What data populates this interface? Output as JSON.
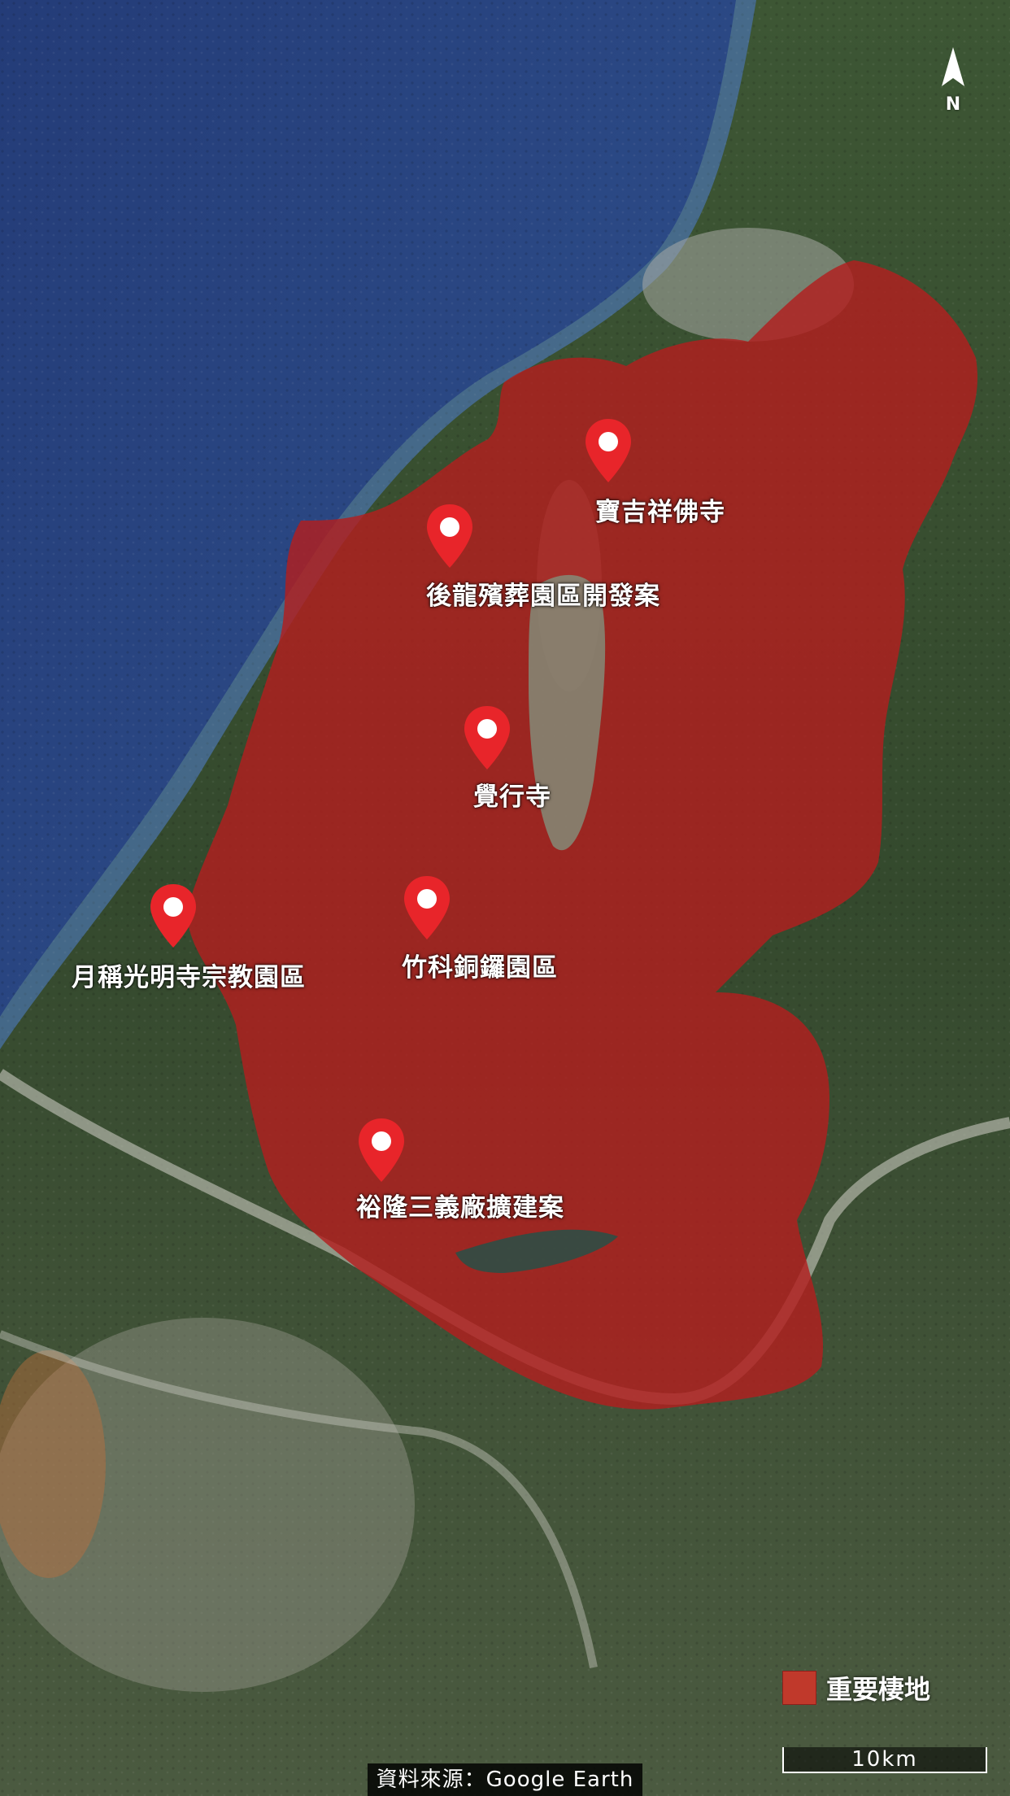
{
  "map": {
    "markers": [
      {
        "id": "baojixiang",
        "label": "寶吉祥佛寺"
      },
      {
        "id": "houlong",
        "label": "後龍殯葬園區開發案"
      },
      {
        "id": "juexing",
        "label": "覺行寺"
      },
      {
        "id": "yuecheng",
        "label": "月稱光明寺宗教園區"
      },
      {
        "id": "zhuke",
        "label": "竹科銅鑼園區"
      },
      {
        "id": "yulong",
        "label": "裕隆三義廠擴建案"
      }
    ],
    "north_label": "N",
    "legend": {
      "label": "重要棲地",
      "color": "#c0392b"
    },
    "scale": {
      "label": "10km"
    },
    "source": "資料來源：Google Earth",
    "colors": {
      "sea": "#2f4e8a",
      "land": "#3a4f32",
      "habitat": "#b22222",
      "marker": "#e8252a"
    }
  }
}
